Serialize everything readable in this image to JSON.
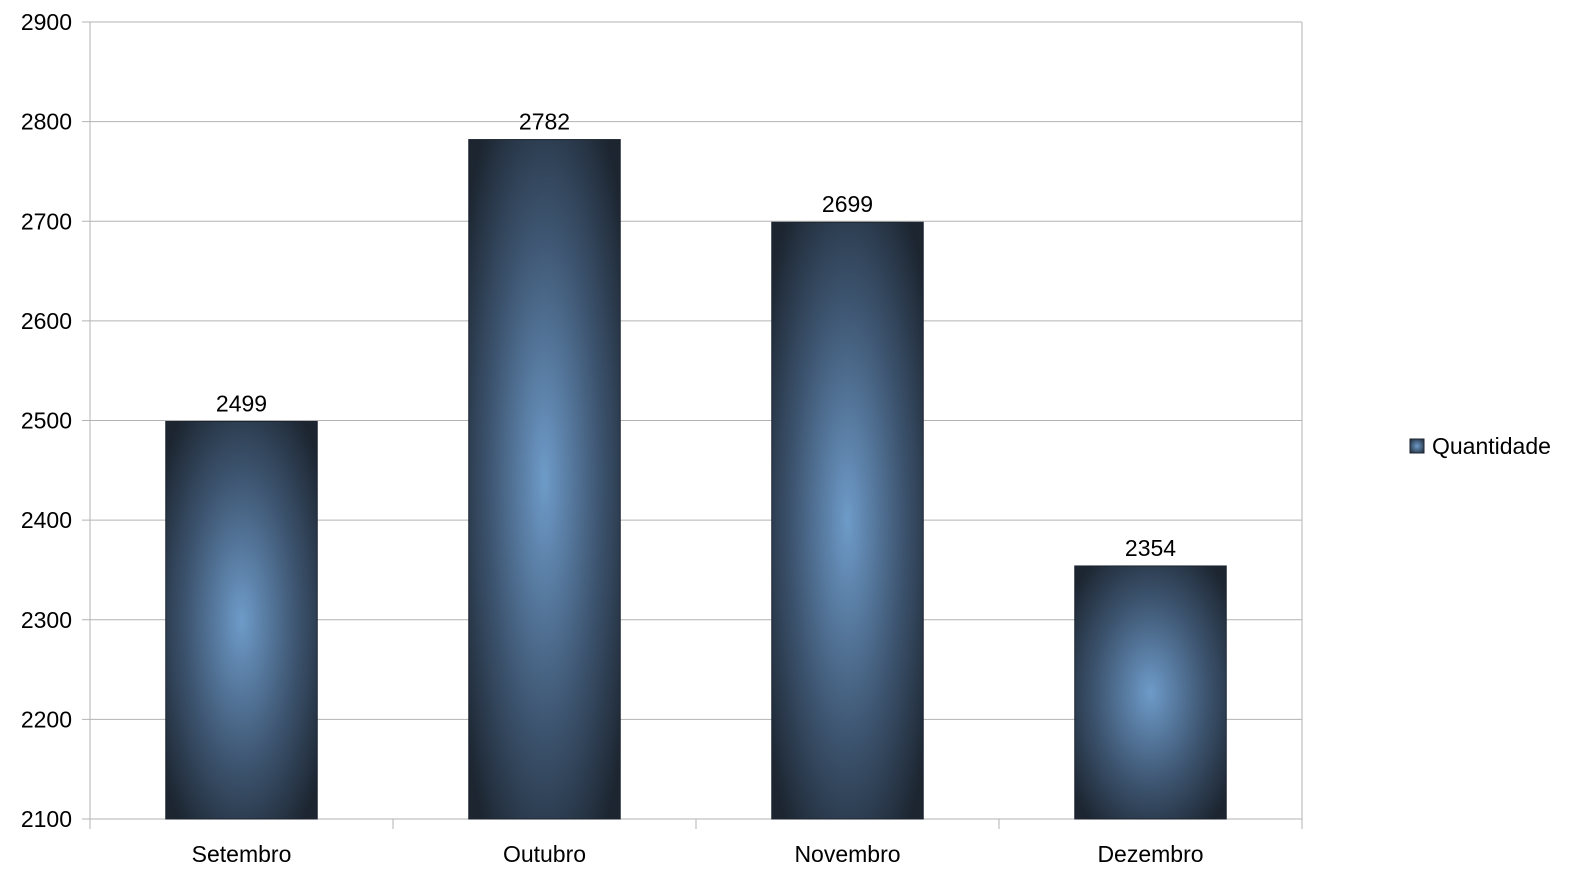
{
  "chart_data": {
    "type": "bar",
    "title": "",
    "xlabel": "",
    "ylabel": "",
    "categories": [
      "Setembro",
      "Outubro",
      "Novembro",
      "Dezembro"
    ],
    "series": [
      {
        "name": "Quantidade",
        "values": [
          2499,
          2782,
          2699,
          2354
        ]
      }
    ],
    "ylim": [
      2100,
      2900
    ],
    "yticks": [
      2100,
      2200,
      2300,
      2400,
      2500,
      2600,
      2700,
      2800,
      2900
    ],
    "grid": true,
    "legend_position": "right",
    "data_labels": true,
    "colors": {
      "bar_dark": "#1c2530",
      "bar_light": "#6e9bc9",
      "gridline": "#b3b3b3",
      "axis": "#b3b3b3"
    }
  }
}
